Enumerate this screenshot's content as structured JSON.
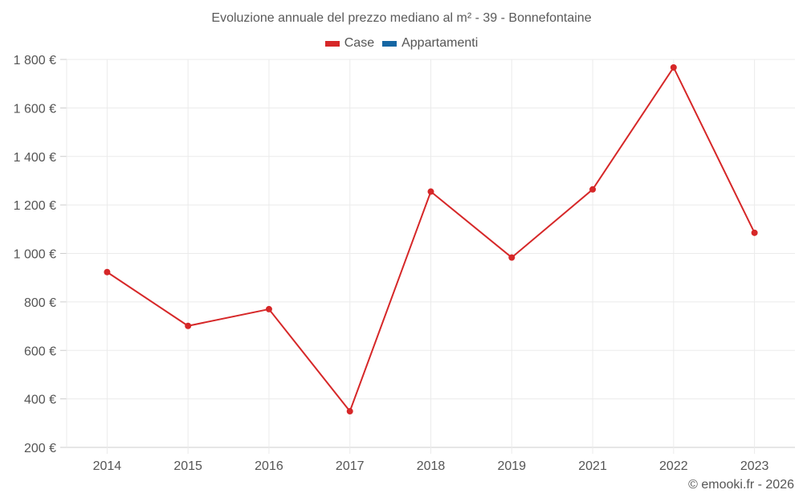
{
  "chart_data": {
    "type": "line",
    "title": "Evoluzione annuale del prezzo mediano al m² - 39 - Bonnefontaine",
    "xlabel": "",
    "ylabel": "",
    "categories": [
      "2014",
      "2015",
      "2016",
      "2017",
      "2018",
      "2019",
      "2021",
      "2022",
      "2023"
    ],
    "series": [
      {
        "name": "Case",
        "color": "#d62728",
        "values": [
          923,
          701,
          770,
          349,
          1255,
          983,
          1264,
          1767,
          1085
        ]
      },
      {
        "name": "Appartamenti",
        "color": "#1f77b4",
        "values": []
      }
    ],
    "ylim": [
      200,
      1800
    ],
    "yticks": [
      200,
      400,
      600,
      800,
      1000,
      1200,
      1400,
      1600,
      1800
    ],
    "ytick_labels": [
      "200 €",
      "400 €",
      "600 €",
      "800 €",
      "1 000 €",
      "1 200 €",
      "1 400 €",
      "1 600 €",
      "1 800 €"
    ],
    "grid": true,
    "legend_position": "top"
  },
  "legend": {
    "items": [
      {
        "label": "Case",
        "color": "#d62728"
      },
      {
        "label": "Appartamenti",
        "color": "#1566a3"
      }
    ]
  },
  "credit": "© emooki.fr - 2026"
}
